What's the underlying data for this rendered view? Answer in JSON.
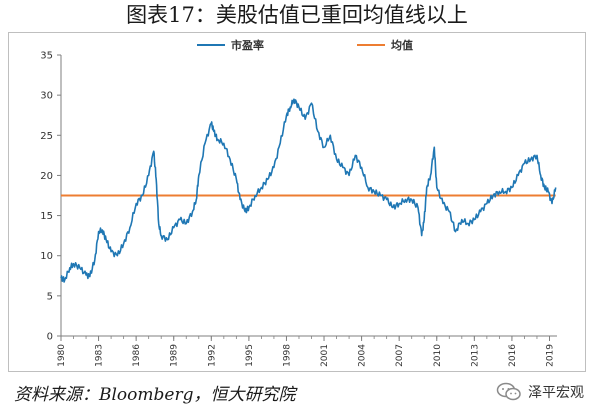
{
  "figure": {
    "title": "图表17：美股估值已重回均值线以上",
    "source": "资料来源：Bloomberg，恒大研究院",
    "watermark": "泽平宏观"
  },
  "colors": {
    "pe_line": "#1f77b4",
    "mean_line": "#ed7d31",
    "axis": "#7f7f7f"
  },
  "chart_data": {
    "type": "line",
    "title": "",
    "xlabel": "",
    "ylabel": "",
    "xlim": [
      1980,
      2019.6
    ],
    "ylim": [
      0,
      35
    ],
    "yticks": [
      0,
      5,
      10,
      15,
      20,
      25,
      30,
      35
    ],
    "xticks": [
      1980,
      1983,
      1986,
      1989,
      1992,
      1995,
      1998,
      2001,
      2004,
      2007,
      2010,
      2013,
      2016,
      2019
    ],
    "legend_position": "top",
    "grid": false,
    "series": [
      {
        "name": "市盈率",
        "x": [
          1980.0,
          1980.3,
          1980.7,
          1981.0,
          1981.5,
          1982.0,
          1982.3,
          1982.7,
          1983.0,
          1983.3,
          1983.6,
          1984.0,
          1984.5,
          1985.0,
          1985.5,
          1986.0,
          1986.5,
          1987.0,
          1987.4,
          1987.6,
          1987.8,
          1988.0,
          1988.5,
          1989.0,
          1989.5,
          1990.0,
          1990.5,
          1990.8,
          1991.0,
          1991.5,
          1992.0,
          1992.2,
          1992.5,
          1993.0,
          1993.5,
          1994.0,
          1994.3,
          1994.7,
          1995.0,
          1995.5,
          1996.0,
          1996.5,
          1997.0,
          1997.5,
          1998.0,
          1998.3,
          1998.6,
          1999.0,
          1999.5,
          2000.0,
          2000.5,
          2001.0,
          2001.5,
          2002.0,
          2002.5,
          2003.0,
          2003.5,
          2004.0,
          2004.5,
          2005.0,
          2005.5,
          2006.0,
          2006.5,
          2007.0,
          2007.5,
          2008.0,
          2008.5,
          2008.8,
          2009.0,
          2009.2,
          2009.5,
          2009.8,
          2010.0,
          2010.5,
          2011.0,
          2011.5,
          2012.0,
          2012.5,
          2013.0,
          2013.5,
          2014.0,
          2014.5,
          2015.0,
          2015.5,
          2016.0,
          2016.5,
          2017.0,
          2017.5,
          2018.0,
          2018.3,
          2018.6,
          2018.9,
          2019.2,
          2019.5
        ],
        "values": [
          7.2,
          7.0,
          8.5,
          9.0,
          8.5,
          7.6,
          7.4,
          9.5,
          13.0,
          13.2,
          12.0,
          10.5,
          10.0,
          11.5,
          13.5,
          16.5,
          17.5,
          20.0,
          23.0,
          19.5,
          14.0,
          12.5,
          12.0,
          13.5,
          14.5,
          14.0,
          15.5,
          17.0,
          20.0,
          24.0,
          26.5,
          25.5,
          24.5,
          24.0,
          22.0,
          19.5,
          17.0,
          15.5,
          16.0,
          17.5,
          18.5,
          19.5,
          21.0,
          24.0,
          27.5,
          28.5,
          29.5,
          28.5,
          27.0,
          29.0,
          25.5,
          23.5,
          25.0,
          22.0,
          21.0,
          20.0,
          22.5,
          21.0,
          18.5,
          18.0,
          17.5,
          17.0,
          16.0,
          16.5,
          17.0,
          17.0,
          16.0,
          12.5,
          14.5,
          18.5,
          20.0,
          23.5,
          18.5,
          16.5,
          15.5,
          13.0,
          14.5,
          14.0,
          14.5,
          15.5,
          16.5,
          17.5,
          18.0,
          18.0,
          18.5,
          20.0,
          21.5,
          22.0,
          22.5,
          20.0,
          18.5,
          18.0,
          16.5,
          18.5
        ]
      },
      {
        "name": "均值",
        "x": [
          1980.0,
          2019.5
        ],
        "values": [
          17.5,
          17.5
        ]
      }
    ]
  }
}
